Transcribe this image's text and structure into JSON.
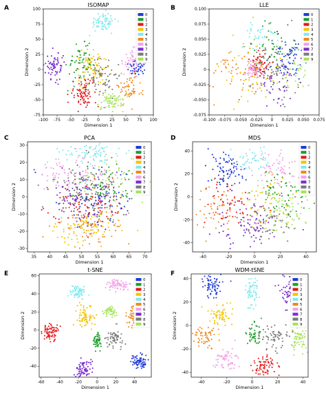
{
  "colors": {
    "0": "#1f3bd6",
    "1": "#1e9e2a",
    "2": "#e31a1c",
    "3": "#f2c500",
    "4": "#7fe9ee",
    "5": "#f08a1c",
    "6": "#f2a0e8",
    "7": "#7a2bd0",
    "8": "#7a7a7a",
    "9": "#a6e35a"
  },
  "legend_labels": [
    "0",
    "1",
    "2",
    "3",
    "4",
    "5",
    "6",
    "7",
    "8",
    "9"
  ],
  "chart_data": [
    {
      "letter": "A",
      "title": "ISOMAP",
      "type": "scatter",
      "xlabel": "Dimension 1",
      "ylabel": "Dimension 2",
      "xlim": [
        -100,
        100
      ],
      "ylim": [
        -75,
        100
      ],
      "xticks": [
        -100,
        -75,
        -50,
        -25,
        0,
        25,
        50,
        75,
        100
      ],
      "yticks": [
        -75,
        -50,
        -25,
        0,
        25,
        50,
        75,
        100
      ],
      "clusters": [
        {
          "label": "4",
          "x": 8,
          "y": 78,
          "sx": 12,
          "sy": 8,
          "n": 70
        },
        {
          "label": "7",
          "x": -78,
          "y": 5,
          "sx": 9,
          "sy": 11,
          "n": 70
        },
        {
          "label": "1",
          "x": -30,
          "y": 8,
          "sx": 13,
          "sy": 15,
          "n": 80
        },
        {
          "label": "3",
          "x": -10,
          "y": 0,
          "sx": 15,
          "sy": 15,
          "n": 80
        },
        {
          "label": "2",
          "x": -25,
          "y": -38,
          "sx": 13,
          "sy": 12,
          "n": 80
        },
        {
          "label": "6",
          "x": 65,
          "y": 15,
          "sx": 10,
          "sy": 10,
          "n": 70
        },
        {
          "label": "9",
          "x": 25,
          "y": -52,
          "sx": 12,
          "sy": 8,
          "n": 70
        },
        {
          "label": "5",
          "x": 55,
          "y": -30,
          "sx": 12,
          "sy": 12,
          "n": 60
        },
        {
          "label": "8",
          "x": 10,
          "y": -15,
          "sx": 16,
          "sy": 16,
          "n": 60
        },
        {
          "label": "0",
          "x": 70,
          "y": 5,
          "sx": 8,
          "sy": 8,
          "n": 40
        }
      ]
    },
    {
      "letter": "B",
      "title": "LLE",
      "type": "scatter",
      "xlabel": "Dimension 1",
      "ylabel": "Dimension 2",
      "xlim": [
        -0.1,
        0.075
      ],
      "ylim": [
        -0.075,
        0.1
      ],
      "xticks": [
        -0.1,
        -0.075,
        -0.05,
        -0.025,
        0.0,
        0.025,
        0.05,
        0.075
      ],
      "yticks": [
        -0.075,
        -0.05,
        -0.025,
        0.0,
        0.025,
        0.05,
        0.075,
        0.1
      ],
      "clusters": [
        {
          "label": "0",
          "x": 0.028,
          "y": 0.02,
          "sx": 0.015,
          "sy": 0.02,
          "n": 70
        },
        {
          "label": "2",
          "x": -0.018,
          "y": 0.005,
          "sx": 0.008,
          "sy": 0.01,
          "n": 70
        },
        {
          "label": "6",
          "x": -0.028,
          "y": 0.0,
          "sx": 0.006,
          "sy": 0.008,
          "n": 60
        },
        {
          "label": "4",
          "x": -0.02,
          "y": 0.055,
          "sx": 0.012,
          "sy": 0.015,
          "n": 40
        },
        {
          "label": "1",
          "x": 0.0,
          "y": 0.035,
          "sx": 0.015,
          "sy": 0.02,
          "n": 50
        },
        {
          "label": "3",
          "x": -0.03,
          "y": -0.01,
          "sx": 0.025,
          "sy": 0.03,
          "n": 60
        },
        {
          "label": "5",
          "x": -0.06,
          "y": -0.005,
          "sx": 0.02,
          "sy": 0.02,
          "n": 50
        },
        {
          "label": "9",
          "x": 0.04,
          "y": 0.0,
          "sx": 0.02,
          "sy": 0.02,
          "n": 50
        },
        {
          "label": "7",
          "x": 0.01,
          "y": -0.02,
          "sx": 0.015,
          "sy": 0.02,
          "n": 50
        },
        {
          "label": "8",
          "x": 0.005,
          "y": 0.0,
          "sx": 0.02,
          "sy": 0.025,
          "n": 50
        }
      ]
    },
    {
      "letter": "C",
      "title": "PCA",
      "type": "scatter",
      "xlabel": "Dimension 1",
      "ylabel": "Dimension 2",
      "xlim": [
        33,
        72
      ],
      "ylim": [
        -32,
        32
      ],
      "xticks": [
        35,
        40,
        45,
        50,
        55,
        60,
        65,
        70
      ],
      "yticks": [
        -30,
        -20,
        -10,
        0,
        10,
        20,
        30
      ],
      "clusters": [
        {
          "label": "4",
          "x": 52,
          "y": 25,
          "sx": 5,
          "sy": 3,
          "n": 80
        },
        {
          "label": "6",
          "x": 47,
          "y": 13,
          "sx": 5,
          "sy": 5,
          "n": 80
        },
        {
          "label": "3",
          "x": 50,
          "y": -18,
          "sx": 6,
          "sy": 5,
          "n": 90
        },
        {
          "label": "2",
          "x": 52,
          "y": -5,
          "sx": 6,
          "sy": 8,
          "n": 90
        },
        {
          "label": "1",
          "x": 57,
          "y": 5,
          "sx": 6,
          "sy": 8,
          "n": 80
        },
        {
          "label": "0",
          "x": 55,
          "y": 0,
          "sx": 6,
          "sy": 8,
          "n": 90
        },
        {
          "label": "5",
          "x": 53,
          "y": -15,
          "sx": 6,
          "sy": 6,
          "n": 70
        },
        {
          "label": "7",
          "x": 50,
          "y": 0,
          "sx": 6,
          "sy": 8,
          "n": 80
        },
        {
          "label": "8",
          "x": 52,
          "y": 5,
          "sx": 6,
          "sy": 8,
          "n": 80
        },
        {
          "label": "9",
          "x": 58,
          "y": 10,
          "sx": 5,
          "sy": 7,
          "n": 60
        }
      ]
    },
    {
      "letter": "D",
      "title": "MDS",
      "type": "scatter",
      "xlabel": "Dimension 1",
      "ylabel": "Dimension 2",
      "xlim": [
        -48,
        48
      ],
      "ylim": [
        -48,
        48
      ],
      "xticks": [
        -40,
        -20,
        0,
        20,
        40
      ],
      "yticks": [
        -40,
        -20,
        0,
        20,
        40
      ],
      "clusters": [
        {
          "label": "0",
          "x": -22,
          "y": 22,
          "sx": 7,
          "sy": 8,
          "n": 80
        },
        {
          "label": "4",
          "x": 0,
          "y": 32,
          "sx": 9,
          "sy": 7,
          "n": 60
        },
        {
          "label": "6",
          "x": 18,
          "y": 25,
          "sx": 8,
          "sy": 8,
          "n": 60
        },
        {
          "label": "1",
          "x": 22,
          "y": 5,
          "sx": 10,
          "sy": 10,
          "n": 60
        },
        {
          "label": "7",
          "x": -5,
          "y": -25,
          "sx": 12,
          "sy": 9,
          "n": 80
        },
        {
          "label": "2",
          "x": -18,
          "y": -5,
          "sx": 10,
          "sy": 10,
          "n": 60
        },
        {
          "label": "3",
          "x": 10,
          "y": -5,
          "sx": 12,
          "sy": 12,
          "n": 60
        },
        {
          "label": "5",
          "x": -28,
          "y": -12,
          "sx": 8,
          "sy": 10,
          "n": 50
        },
        {
          "label": "8",
          "x": 10,
          "y": -20,
          "sx": 12,
          "sy": 10,
          "n": 60
        },
        {
          "label": "9",
          "x": 22,
          "y": -15,
          "sx": 10,
          "sy": 10,
          "n": 60
        }
      ]
    },
    {
      "letter": "E",
      "title": "t-SNE",
      "type": "scatter",
      "xlabel": "Dimension 1",
      "ylabel": "Dimension 2",
      "xlim": [
        -62,
        58
      ],
      "ylim": [
        -52,
        62
      ],
      "xticks": [
        -60,
        -40,
        -20,
        0,
        20,
        40
      ],
      "yticks": [
        -40,
        -20,
        0,
        20,
        40,
        60
      ],
      "clusters": [
        {
          "label": "6",
          "x": 22,
          "y": 50,
          "sx": 6,
          "sy": 3,
          "n": 70
        },
        {
          "label": "4",
          "x": -20,
          "y": 42,
          "sx": 5,
          "sy": 4,
          "n": 60
        },
        {
          "label": "3",
          "x": -12,
          "y": 15,
          "sx": 5,
          "sy": 6,
          "n": 70
        },
        {
          "label": "9",
          "x": 14,
          "y": 20,
          "sx": 4,
          "sy": 3,
          "n": 50
        },
        {
          "label": "5",
          "x": 38,
          "y": 15,
          "sx": 4,
          "sy": 6,
          "n": 60
        },
        {
          "label": "2",
          "x": -50,
          "y": -2,
          "sx": 4,
          "sy": 6,
          "n": 70
        },
        {
          "label": "0",
          "x": 45,
          "y": -35,
          "sx": 5,
          "sy": 4,
          "n": 70
        },
        {
          "label": "1",
          "x": 0,
          "y": -12,
          "sx": 3,
          "sy": 4,
          "n": 50
        },
        {
          "label": "8",
          "x": 18,
          "y": -10,
          "sx": 5,
          "sy": 5,
          "n": 60
        },
        {
          "label": "7",
          "x": -15,
          "y": -42,
          "sx": 5,
          "sy": 5,
          "n": 70
        }
      ]
    },
    {
      "letter": "F",
      "title": "WDM-tSNE",
      "type": "scatter",
      "xlabel": "Dimension 1",
      "ylabel": "Dimension 2",
      "xlim": [
        -48,
        44
      ],
      "ylim": [
        -44,
        44
      ],
      "xticks": [
        -40,
        -20,
        0,
        20,
        40
      ],
      "yticks": [
        -40,
        -20,
        0,
        20,
        40
      ],
      "clusters": [
        {
          "label": "0",
          "x": -32,
          "y": 35,
          "sx": 4,
          "sy": 5,
          "n": 70
        },
        {
          "label": "4",
          "x": 0,
          "y": 28,
          "sx": 3,
          "sy": 8,
          "n": 60
        },
        {
          "label": "7",
          "x": 28,
          "y": 30,
          "sx": 3,
          "sy": 6,
          "n": 60
        },
        {
          "label": "3",
          "x": -25,
          "y": 10,
          "sx": 6,
          "sy": 5,
          "n": 60
        },
        {
          "label": "5",
          "x": -38,
          "y": -10,
          "sx": 5,
          "sy": 4,
          "n": 60
        },
        {
          "label": "1",
          "x": 2,
          "y": -8,
          "sx": 3,
          "sy": 5,
          "n": 50
        },
        {
          "label": "8",
          "x": 18,
          "y": -10,
          "sx": 6,
          "sy": 5,
          "n": 60
        },
        {
          "label": "9",
          "x": 36,
          "y": -12,
          "sx": 4,
          "sy": 6,
          "n": 60
        },
        {
          "label": "6",
          "x": -20,
          "y": -28,
          "sx": 5,
          "sy": 5,
          "n": 60
        },
        {
          "label": "2",
          "x": 10,
          "y": -35,
          "sx": 5,
          "sy": 4,
          "n": 70
        }
      ]
    }
  ]
}
